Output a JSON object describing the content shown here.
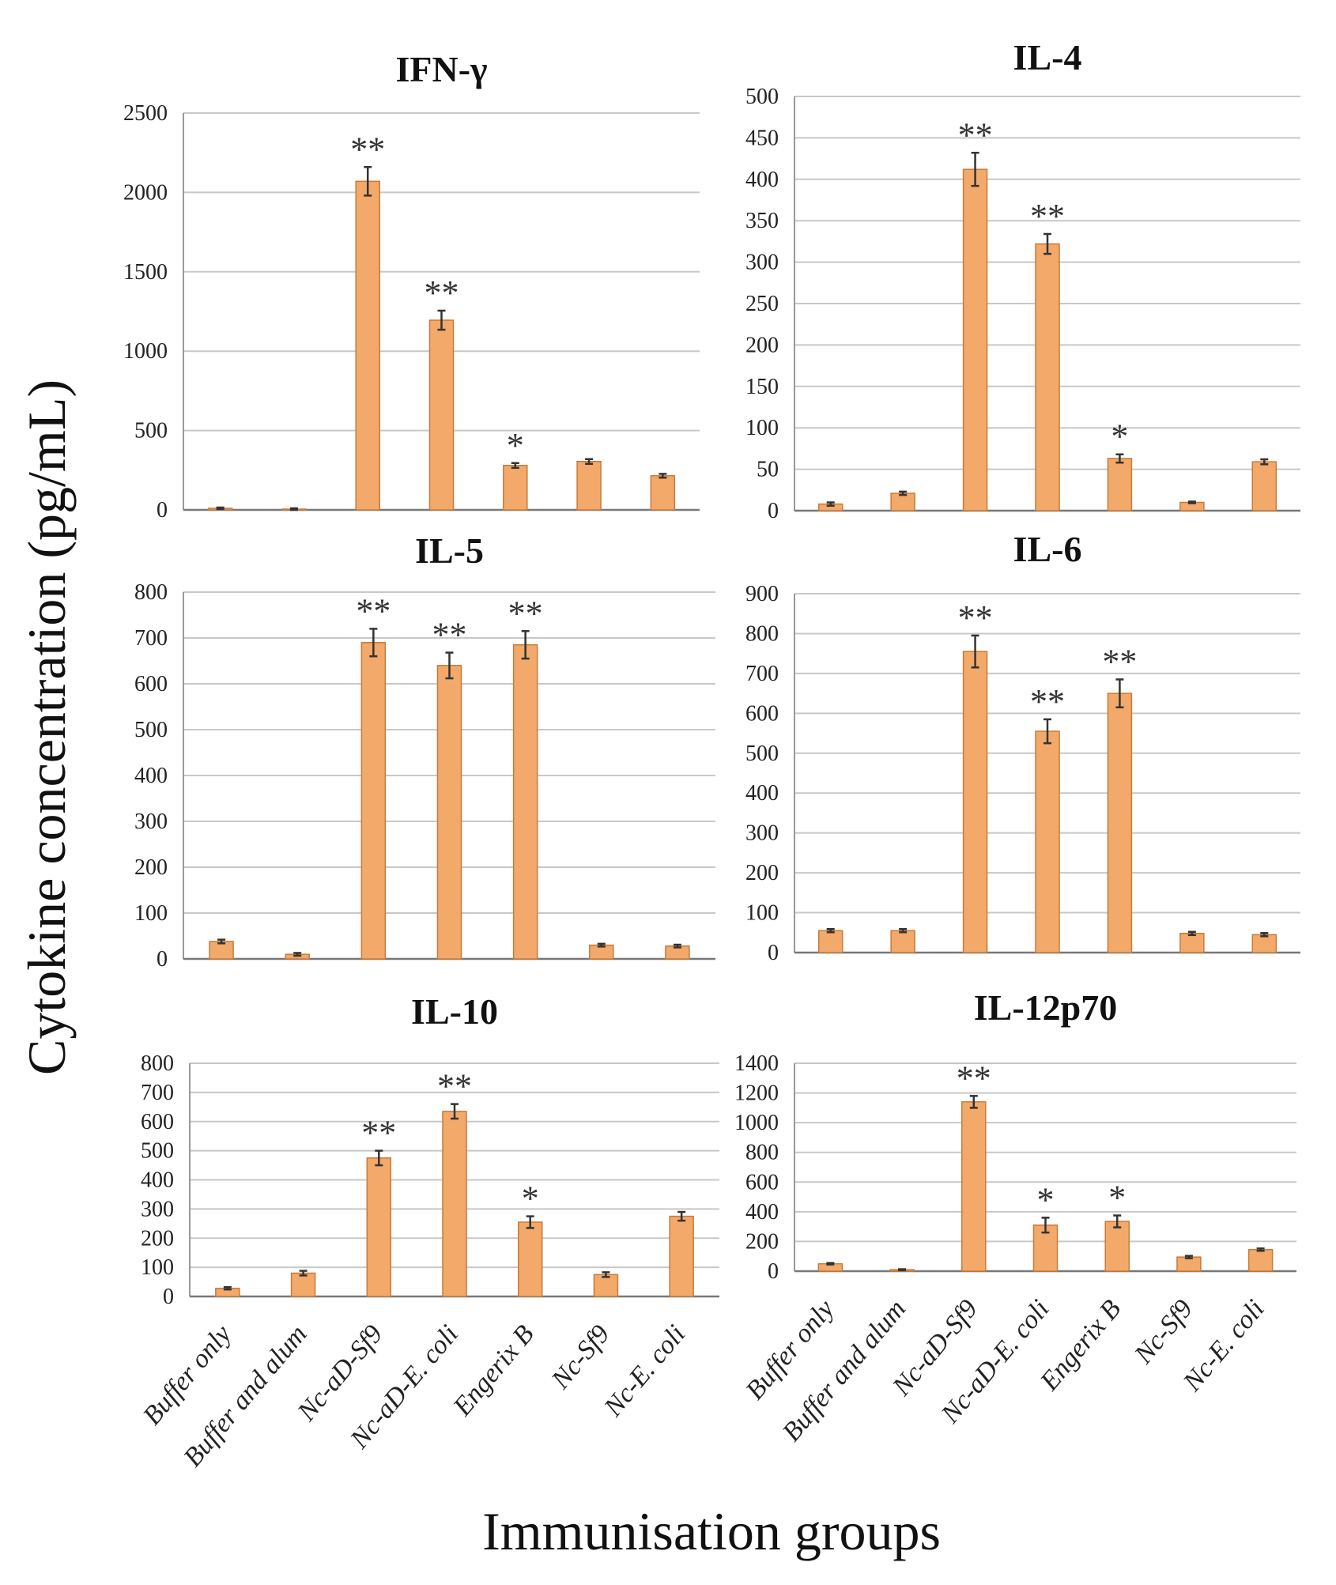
{
  "chart_data": {
    "type": "bar",
    "ylabel": "Cytokine concentration (pg/mL)",
    "xlabel": "Immunisation groups",
    "categories": [
      "Buffer only",
      "Buffer and alum",
      "Nc-aD-Sf9",
      "Nc-aD-E. coli",
      "Engerix B",
      "Nc-Sf9",
      "Nc-E. coli"
    ],
    "bar_color": "#f2a96a",
    "panels": [
      {
        "title": "IFN-γ",
        "ylim": [
          0,
          2500
        ],
        "yticks": [
          0,
          500,
          1000,
          1500,
          2000,
          2500
        ],
        "values": [
          10,
          5,
          2070,
          1195,
          280,
          305,
          215
        ],
        "errors": [
          5,
          5,
          90,
          60,
          15,
          15,
          12
        ],
        "significance": [
          "",
          "",
          "**",
          "**",
          "*",
          "",
          ""
        ]
      },
      {
        "title": "IL-4",
        "ylim": [
          0,
          500
        ],
        "yticks": [
          0,
          50,
          100,
          150,
          200,
          250,
          300,
          350,
          400,
          450,
          500
        ],
        "values": [
          8,
          21,
          412,
          322,
          63,
          10,
          59
        ],
        "errors": [
          2,
          2,
          20,
          12,
          5,
          1,
          3
        ],
        "significance": [
          "",
          "",
          "**",
          "**",
          "*",
          "",
          ""
        ]
      },
      {
        "title": "IL-5",
        "ylim": [
          0,
          800
        ],
        "yticks": [
          0,
          100,
          200,
          300,
          400,
          500,
          600,
          700,
          800
        ],
        "values": [
          38,
          10,
          690,
          640,
          685,
          30,
          28
        ],
        "errors": [
          4,
          3,
          30,
          28,
          30,
          3,
          3
        ],
        "significance": [
          "",
          "",
          "**",
          "**",
          "**",
          "",
          ""
        ]
      },
      {
        "title": "IL-6",
        "ylim": [
          0,
          900
        ],
        "yticks": [
          0,
          100,
          200,
          300,
          400,
          500,
          600,
          700,
          800,
          900
        ],
        "values": [
          55,
          55,
          755,
          555,
          650,
          48,
          45
        ],
        "errors": [
          4,
          4,
          40,
          30,
          35,
          4,
          4
        ],
        "significance": [
          "",
          "",
          "**",
          "**",
          "**",
          "",
          ""
        ]
      },
      {
        "title": "IL-10",
        "ylim": [
          0,
          800
        ],
        "yticks": [
          0,
          100,
          200,
          300,
          400,
          500,
          600,
          700,
          800
        ],
        "values": [
          28,
          80,
          475,
          635,
          255,
          75,
          275
        ],
        "errors": [
          4,
          8,
          25,
          25,
          20,
          8,
          15
        ],
        "significance": [
          "",
          "",
          "**",
          "**",
          "*",
          "",
          ""
        ]
      },
      {
        "title": "IL-12p70",
        "ylim": [
          0,
          1400
        ],
        "yticks": [
          0,
          200,
          400,
          600,
          800,
          1000,
          1200,
          1400
        ],
        "values": [
          50,
          10,
          1140,
          310,
          335,
          95,
          145
        ],
        "errors": [
          5,
          3,
          40,
          50,
          40,
          8,
          8
        ],
        "significance": [
          "",
          "",
          "**",
          "*",
          "*",
          "",
          ""
        ]
      }
    ]
  }
}
